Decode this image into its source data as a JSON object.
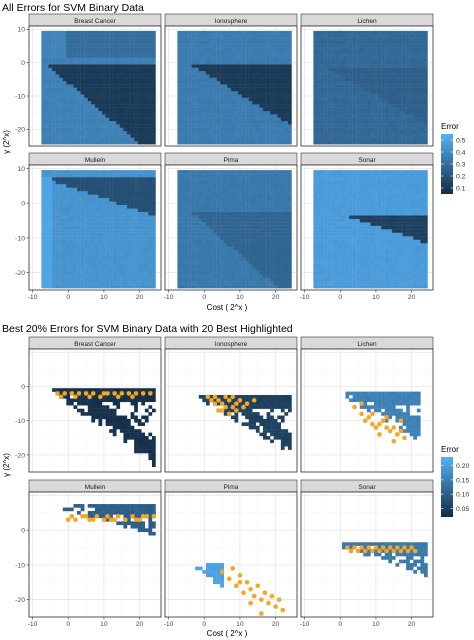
{
  "chart_data": [
    {
      "type": "heatmap",
      "title": "All Errors for SVM Binary Data",
      "xlabel": "Cost ( 2^x )",
      "ylabel": "γ (2^x)",
      "xlim": [
        -11,
        26
      ],
      "ylim": [
        -25,
        11
      ],
      "xticks": [
        -10,
        0,
        10,
        20
      ],
      "yticks": [
        10,
        0,
        -10,
        -20
      ],
      "legend": {
        "title": "Error",
        "position": "right",
        "range": [
          0.05,
          0.55
        ],
        "ticks": [
          0.1,
          0.2,
          0.3,
          0.4,
          0.5
        ],
        "tick_labels": [
          "0.1",
          "0.2",
          "0.3",
          "0.4",
          "0.5"
        ],
        "low_color": "#132b43",
        "high_color": "#56b1f7"
      },
      "grid": true,
      "panels": [
        {
          "name": "Breast Cancer",
          "corner_cost": -6,
          "corner_gamma": -0.5,
          "slope": -0.92,
          "low_error": 0.1,
          "high_error": 0.38,
          "upper_left_error": 0.3,
          "left_block_error": 0.38
        },
        {
          "name": "Ionosphere",
          "corner_cost": -3,
          "corner_gamma": -1,
          "slope": -0.65,
          "low_error": 0.1,
          "high_error": 0.36
        },
        {
          "name": "Lichen",
          "corner_cost": -3,
          "corner_gamma": -2,
          "slope": -0.6,
          "low_error": 0.24,
          "high_error": 0.29
        },
        {
          "name": "Mullein",
          "corner_cost": -6,
          "corner_gamma": 7,
          "slope": -0.35,
          "low_error": 0.18,
          "high_error": 0.45,
          "left_strip_error": 0.5
        },
        {
          "name": "Pima",
          "corner_cost": -3,
          "corner_gamma": -3,
          "slope": -0.9,
          "low_error": 0.26,
          "high_error": 0.35
        },
        {
          "name": "Sonar",
          "corner_cost": 3,
          "corner_gamma": -4,
          "slope": -0.35,
          "low_error": 0.12,
          "high_error": 0.48
        }
      ]
    },
    {
      "type": "heatmap",
      "title": "Best 20% Errors for SVM Binary Data with 20 Best Highlighted",
      "xlabel": "Cost ( 2^x )",
      "ylabel": "γ (2^x)",
      "xlim": [
        -11,
        26
      ],
      "ylim": [
        -25,
        11
      ],
      "xticks": [
        -10,
        0,
        10,
        20
      ],
      "yticks": [
        0,
        -10,
        -20
      ],
      "highlight_color": "#f5a623",
      "legend": {
        "title": "Error",
        "position": "right",
        "range": [
          0.02,
          0.23
        ],
        "ticks": [
          0.05,
          0.1,
          0.15,
          0.2
        ],
        "tick_labels": [
          "0.05",
          "0.10",
          "0.15",
          "0.20"
        ],
        "low_color": "#132b43",
        "high_color": "#56b1f7"
      },
      "grid": true,
      "panels": [
        {
          "name": "Breast Cancer",
          "error": 0.03,
          "region": {
            "top_gamma": -1,
            "top_x0": -4,
            "top_x1": 24,
            "slope": -0.75,
            "bottom_gamma": -24
          }
        },
        {
          "name": "Ionosphere",
          "error": 0.055,
          "region": {
            "top_gamma": -3,
            "top_x0": -1,
            "top_x1": 24,
            "slope": -0.62,
            "bottom_gamma": -18
          }
        },
        {
          "name": "Lichen",
          "error": 0.155,
          "region": {
            "top_gamma": -2,
            "top_x0": 1,
            "top_x1": 22,
            "slope": -0.6,
            "bottom_gamma": -22
          }
        },
        {
          "name": "Mullein",
          "error": 0.1,
          "region": {
            "top_gamma": 7,
            "top_x0": -1,
            "top_x1": 24,
            "slope": -0.3,
            "bottom_gamma": -4
          }
        },
        {
          "name": "Pima",
          "error": 0.205,
          "region": {
            "top_gamma": -10,
            "top_x0": -2,
            "top_x1": 5,
            "slope": -0.95,
            "bottom_gamma": -24
          }
        },
        {
          "name": "Sonar",
          "error": 0.14,
          "region": {
            "top_gamma": -4,
            "top_x0": 1,
            "top_x1": 24,
            "slope": -0.35,
            "bottom_gamma": -24
          }
        }
      ],
      "highlights": [
        {
          "panel": "Breast Cancer",
          "points": [
            [
              -3,
              -2
            ],
            [
              -1,
              -2
            ],
            [
              1,
              -2
            ],
            [
              3,
              -2
            ],
            [
              5,
              -2
            ],
            [
              7,
              -2
            ],
            [
              9,
              -3
            ],
            [
              11,
              -2
            ],
            [
              13,
              -2
            ],
            [
              15,
              -2
            ],
            [
              17,
              -2
            ],
            [
              19,
              -2
            ],
            [
              21,
              -2
            ],
            [
              23,
              -2
            ],
            [
              -2,
              -3
            ],
            [
              2,
              -3
            ],
            [
              6,
              -3
            ],
            [
              10,
              -2
            ],
            [
              14,
              -3
            ],
            [
              18,
              -3
            ]
          ]
        },
        {
          "panel": "Ionosphere",
          "points": [
            [
              1,
              -3
            ],
            [
              2,
              -4
            ],
            [
              3,
              -5
            ],
            [
              4,
              -4
            ],
            [
              5,
              -5
            ],
            [
              6,
              -3
            ],
            [
              7,
              -4
            ],
            [
              8,
              -6
            ],
            [
              9,
              -5
            ],
            [
              10,
              -4
            ],
            [
              12,
              -5
            ],
            [
              14,
              -4
            ],
            [
              4,
              -7
            ],
            [
              6,
              -6
            ],
            [
              7,
              -8
            ],
            [
              9,
              -7
            ],
            [
              3,
              -3
            ],
            [
              5,
              -7
            ],
            [
              11,
              -6
            ],
            [
              8,
              -3
            ]
          ]
        },
        {
          "panel": "Lichen",
          "points": [
            [
              4,
              -6
            ],
            [
              6,
              -8
            ],
            [
              7,
              -10
            ],
            [
              8,
              -9
            ],
            [
              9,
              -11
            ],
            [
              10,
              -12
            ],
            [
              11,
              -11
            ],
            [
              12,
              -10
            ],
            [
              13,
              -12
            ],
            [
              14,
              -13
            ],
            [
              15,
              -12
            ],
            [
              16,
              -14
            ],
            [
              17,
              -13
            ],
            [
              18,
              -15
            ],
            [
              15,
              -16
            ],
            [
              13,
              -9
            ],
            [
              11,
              -14
            ],
            [
              9,
              -8
            ],
            [
              17,
              -10
            ],
            [
              6,
              -5
            ]
          ]
        },
        {
          "panel": "Mullein",
          "points": [
            [
              0,
              3
            ],
            [
              2,
              3
            ],
            [
              4,
              4
            ],
            [
              6,
              3
            ],
            [
              8,
              4
            ],
            [
              10,
              3
            ],
            [
              12,
              3
            ],
            [
              14,
              4
            ],
            [
              16,
              3
            ],
            [
              18,
              4
            ],
            [
              20,
              3
            ],
            [
              22,
              4
            ],
            [
              24,
              4
            ],
            [
              1,
              4
            ],
            [
              7,
              3
            ],
            [
              13,
              3
            ],
            [
              19,
              3
            ],
            [
              21,
              4
            ],
            [
              5,
              4
            ],
            [
              11,
              4
            ]
          ]
        },
        {
          "panel": "Pima",
          "points": [
            [
              5,
              -12
            ],
            [
              7,
              -14
            ],
            [
              9,
              -16
            ],
            [
              10,
              -13
            ],
            [
              11,
              -18
            ],
            [
              12,
              -15
            ],
            [
              13,
              -17
            ],
            [
              14,
              -19
            ],
            [
              15,
              -16
            ],
            [
              16,
              -20
            ],
            [
              17,
              -18
            ],
            [
              18,
              -21
            ],
            [
              19,
              -19
            ],
            [
              20,
              -22
            ],
            [
              21,
              -20
            ],
            [
              22,
              -23
            ],
            [
              16,
              -24
            ],
            [
              13,
              -21
            ],
            [
              8,
              -11
            ],
            [
              10,
              -15
            ]
          ]
        },
        {
          "panel": "Sonar",
          "points": [
            [
              2,
              -5
            ],
            [
              3,
              -6
            ],
            [
              4,
              -5
            ],
            [
              5,
              -6
            ],
            [
              6,
              -5
            ],
            [
              7,
              -6
            ],
            [
              8,
              -5
            ],
            [
              9,
              -6
            ],
            [
              10,
              -5
            ],
            [
              11,
              -6
            ],
            [
              12,
              -5
            ],
            [
              13,
              -6
            ],
            [
              14,
              -5
            ],
            [
              15,
              -6
            ],
            [
              16,
              -5
            ],
            [
              17,
              -6
            ],
            [
              18,
              -5
            ],
            [
              19,
              -6
            ],
            [
              20,
              -5
            ],
            [
              21,
              -6
            ]
          ]
        }
      ]
    }
  ]
}
